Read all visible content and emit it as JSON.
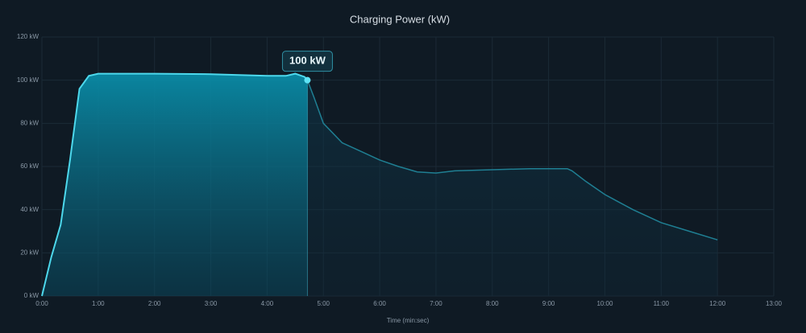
{
  "chart_data": {
    "type": "area",
    "title": "Charging Power (kW)",
    "x_label": "Time (min:sec)",
    "x": [
      0,
      10,
      20,
      30,
      40,
      50,
      60,
      120,
      180,
      240,
      260,
      270,
      280,
      283,
      290,
      300,
      320,
      340,
      360,
      380,
      400,
      420,
      440,
      480,
      520,
      560,
      565,
      580,
      600,
      630,
      660,
      690,
      720
    ],
    "series": [
      {
        "name": "Charging Power",
        "color": "#4dd8ec",
        "values": [
          0,
          18,
          33,
          63,
          96,
          102,
          103,
          103,
          102.8,
          102,
          102,
          103,
          101.5,
          100,
          92,
          80,
          71,
          67,
          63,
          60,
          57.5,
          57,
          58,
          58.5,
          59,
          59,
          58,
          53,
          47,
          40,
          34,
          30,
          26
        ]
      }
    ],
    "xlim": [
      0,
      780
    ],
    "xticks": [
      {
        "value": 0,
        "label": "0:00"
      },
      {
        "value": 60,
        "label": "1:00"
      },
      {
        "value": 120,
        "label": "2:00"
      },
      {
        "value": 180,
        "label": "3:00"
      },
      {
        "value": 240,
        "label": "4:00"
      },
      {
        "value": 300,
        "label": "5:00"
      },
      {
        "value": 360,
        "label": "6:00"
      },
      {
        "value": 420,
        "label": "7:00"
      },
      {
        "value": 480,
        "label": "8:00"
      },
      {
        "value": 540,
        "label": "9:00"
      },
      {
        "value": 600,
        "label": "10:00"
      },
      {
        "value": 660,
        "label": "11:00"
      },
      {
        "value": 720,
        "label": "12:00"
      },
      {
        "value": 780,
        "label": "13:00"
      }
    ],
    "ylim": [
      0,
      120
    ],
    "yticks": [
      {
        "value": 0,
        "label": "0 kW"
      },
      {
        "value": 20,
        "label": "20 kW"
      },
      {
        "value": 40,
        "label": "40 kW"
      },
      {
        "value": 60,
        "label": "60 kW"
      },
      {
        "value": 80,
        "label": "80 kW"
      },
      {
        "value": 100,
        "label": "100 kW"
      },
      {
        "value": 120,
        "label": "120 kW"
      }
    ],
    "grid": true,
    "annotation": {
      "x": 283,
      "y": 100,
      "label": "100 kW"
    }
  }
}
